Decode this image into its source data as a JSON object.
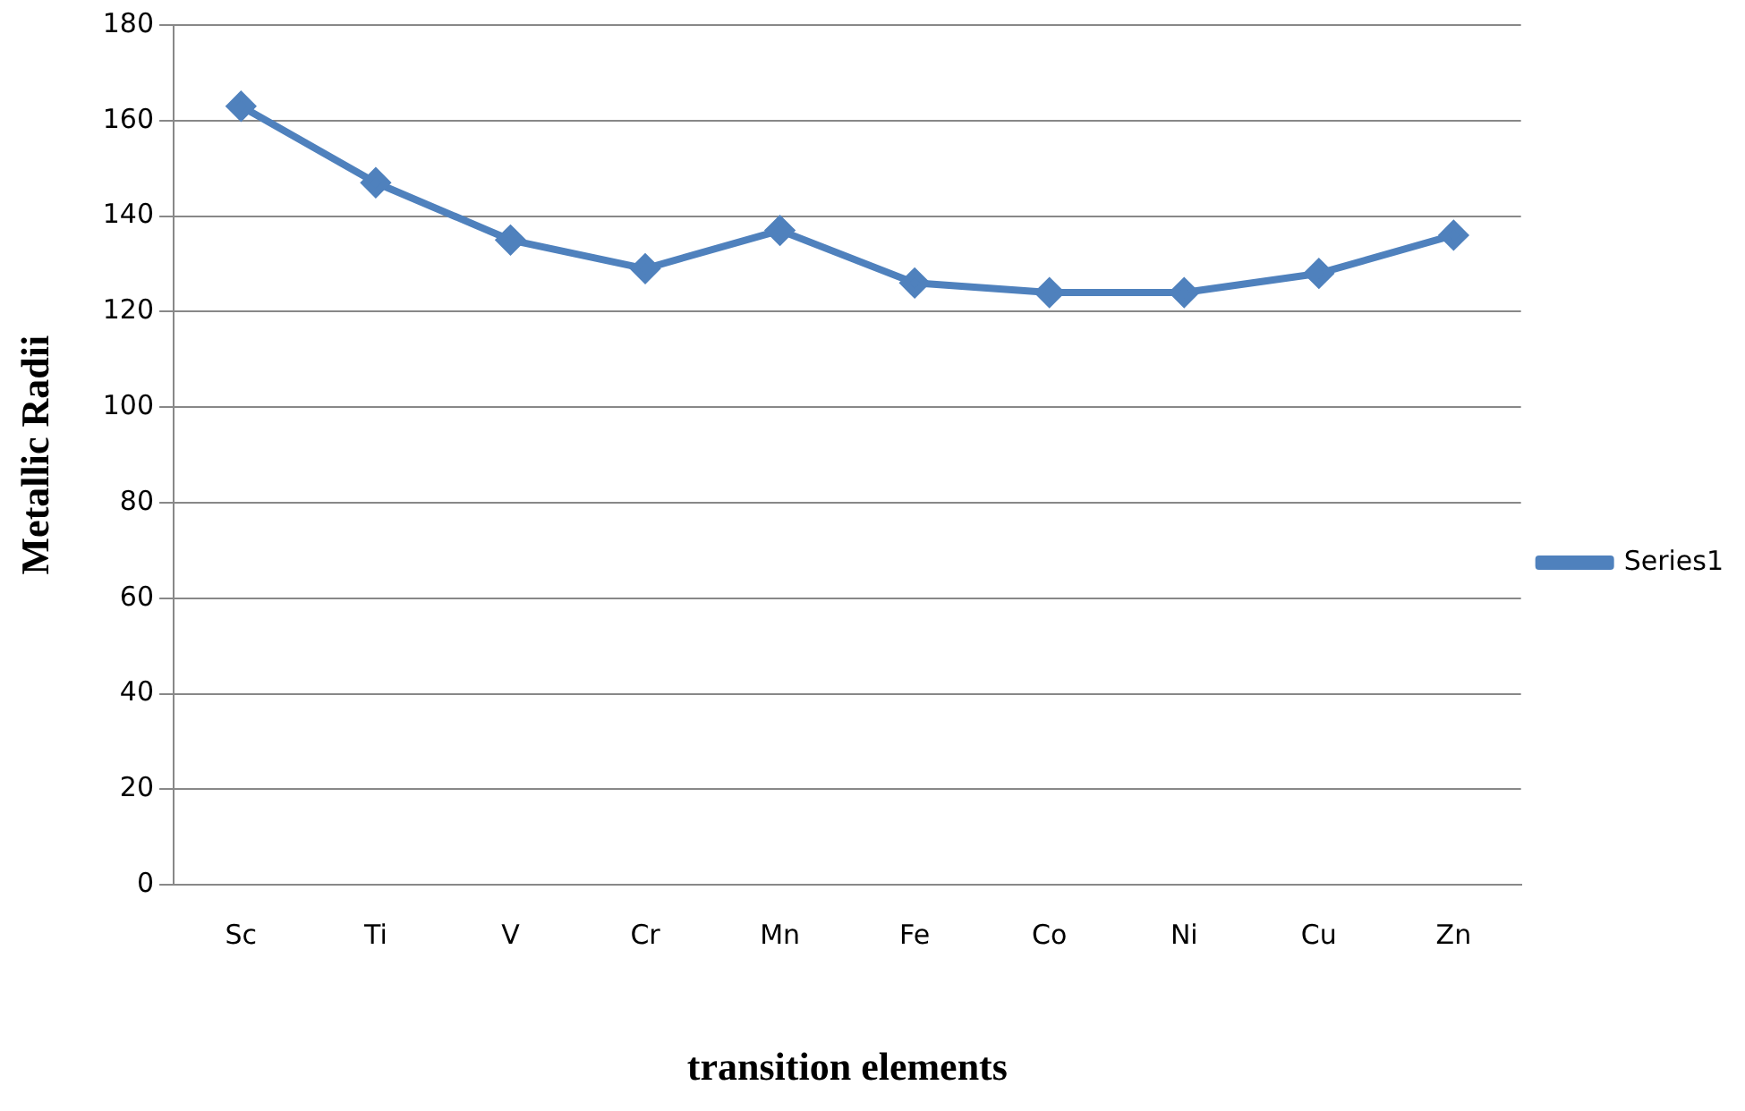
{
  "chart_data": {
    "type": "line",
    "xlabel": "transition elements",
    "ylabel": "Metallic Radii",
    "categories": [
      "Sc",
      "Ti",
      "V",
      "Cr",
      "Mn",
      "Fe",
      "Co",
      "Ni",
      "Cu",
      "Zn"
    ],
    "series": [
      {
        "name": "Series1",
        "color": "#4f81bd",
        "values": [
          163,
          147,
          135,
          129,
          137,
          126,
          124,
          124,
          128,
          136
        ]
      }
    ],
    "ylim": [
      0,
      180
    ],
    "yticks": [
      0,
      20,
      40,
      60,
      80,
      100,
      120,
      140,
      160,
      180
    ],
    "grid": "y",
    "legend": "right",
    "marker": "diamond",
    "line_style": "solid"
  }
}
